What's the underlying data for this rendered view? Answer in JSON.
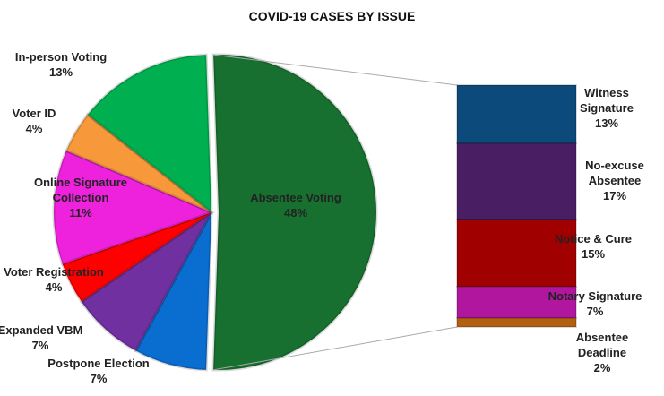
{
  "chart_data": {
    "type": "pie",
    "title": "COVID-19 CASES BY ISSUE",
    "categories": [
      "Absentee Voting",
      "Postpone Election",
      "Expanded VBM",
      "Voter Registration",
      "Online Signature Collection",
      "Voter ID",
      "In-person Voting"
    ],
    "values": [
      48,
      7,
      7,
      4,
      11,
      4,
      13
    ],
    "value_labels": [
      "48%",
      "7%",
      "7%",
      "4%",
      "11%",
      "4%",
      "13%"
    ],
    "colors": [
      "#17702f",
      "#0a6ed1",
      "#7030a0",
      "#ff0000",
      "#ee22dd",
      "#f7993a",
      "#00b050"
    ],
    "breakdown": {
      "categories": [
        "Witness Signature",
        "No-excuse Absentee",
        "Notice & Cure",
        "Notary Signature",
        "Absentee Deadline"
      ],
      "values": [
        13,
        17,
        15,
        7,
        2
      ],
      "value_labels": [
        "13%",
        "17%",
        "15%",
        "7%",
        "2%"
      ],
      "colors": [
        "#0b4a7a",
        "#4a1e63",
        "#a00000",
        "#b0169e",
        "#b0600e"
      ]
    }
  }
}
